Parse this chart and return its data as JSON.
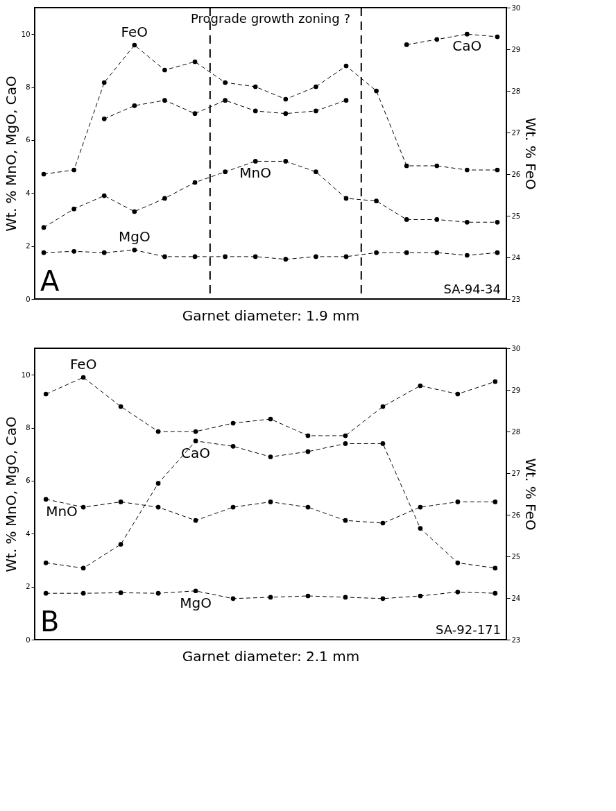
{
  "chart_data": [
    {
      "type": "line",
      "xlabel": "Garnet diameter: 1.9 mm",
      "ylabel": "Wt. % MnO, MgO, CaO",
      "y2label": "Wt. % FeO",
      "categories": [
        null,
        null,
        null,
        null,
        null,
        null,
        null,
        null,
        null,
        null,
        null,
        null,
        null,
        null,
        null,
        null
      ],
      "ylim": [
        0,
        11
      ],
      "yticks": [
        0,
        2,
        4,
        6,
        8,
        10
      ],
      "y2lim": [
        23,
        30
      ],
      "y2ticks": [
        23,
        24,
        25,
        26,
        27,
        28,
        29,
        30
      ],
      "tick_labels": "y",
      "marker": "circle",
      "line_style": "dashed",
      "series": [
        {
          "name": "FeO",
          "color": "#000000",
          "axis": "y2",
          "values": [
            26.0,
            26.1,
            28.2,
            29.1,
            28.5,
            28.7,
            28.2,
            28.1,
            27.8,
            28.1,
            28.6,
            28.0,
            26.2,
            26.2,
            26.1,
            26.1
          ]
        },
        {
          "name": "CaO",
          "color": "#000000",
          "values": [
            null,
            null,
            6.8,
            7.3,
            7.5,
            7.0,
            7.5,
            7.1,
            7.0,
            7.1,
            7.5,
            null,
            9.6,
            9.8,
            10.0,
            9.9
          ]
        },
        {
          "name": "MnO",
          "color": "#000000",
          "values": [
            2.7,
            3.4,
            3.9,
            3.3,
            3.8,
            4.4,
            4.8,
            5.2,
            5.2,
            4.8,
            3.8,
            3.7,
            3.0,
            3.0,
            2.9,
            2.9
          ]
        },
        {
          "name": "MgO",
          "color": "#000000",
          "values": [
            1.75,
            1.8,
            1.75,
            1.85,
            1.6,
            1.6,
            1.6,
            1.6,
            1.5,
            1.6,
            1.6,
            1.75,
            1.75,
            1.75,
            1.65,
            1.75
          ]
        }
      ],
      "annotations": [
        "Prograde growth zoning ?",
        "A",
        "SA-94-34"
      ]
    },
    {
      "type": "line",
      "xlabel": "Garnet diameter: 2.1 mm",
      "ylabel": "Wt. % MnO, MgO, CaO",
      "y2label": "Wt. % FeO",
      "categories": [
        null,
        null,
        null,
        null,
        null,
        null,
        null,
        null,
        null,
        null,
        null,
        null,
        null
      ],
      "ylim": [
        0,
        11
      ],
      "yticks": [
        0,
        2,
        4,
        6,
        8,
        10
      ],
      "y2lim": [
        23,
        30
      ],
      "y2ticks": [
        23,
        24,
        25,
        26,
        27,
        28,
        29,
        30
      ],
      "tick_labels": "y",
      "marker": "circle",
      "line_style": "dashed",
      "series": [
        {
          "name": "FeO",
          "color": "#000000",
          "axis": "y2",
          "values": [
            28.9,
            29.3,
            28.6,
            28.0,
            28.0,
            28.2,
            28.3,
            27.9,
            27.9,
            28.6,
            29.1,
            28.9,
            29.2
          ]
        },
        {
          "name": "CaO",
          "color": "#000000",
          "values": [
            2.9,
            2.7,
            3.6,
            5.9,
            7.5,
            7.3,
            6.9,
            7.1,
            7.4,
            7.4,
            4.2,
            2.9,
            2.7
          ]
        },
        {
          "name": "MnO",
          "color": "#000000",
          "values": [
            5.3,
            5.0,
            5.2,
            5.0,
            4.5,
            5.0,
            5.2,
            5.0,
            4.5,
            4.4,
            5.0,
            5.2,
            5.2
          ]
        },
        {
          "name": "MgO",
          "color": "#000000",
          "values": [
            1.75,
            1.75,
            1.77,
            1.75,
            1.84,
            1.55,
            1.6,
            1.65,
            1.6,
            1.55,
            1.65,
            1.8,
            1.75
          ]
        }
      ],
      "annotations": [
        "B",
        "SA-92-171"
      ]
    }
  ]
}
